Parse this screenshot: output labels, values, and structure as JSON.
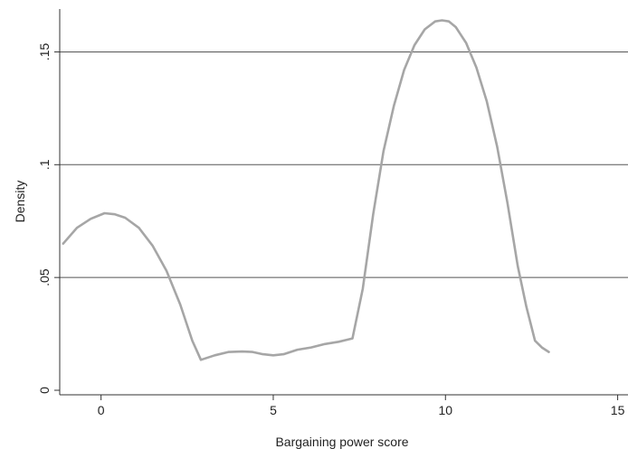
{
  "chart_data": {
    "type": "line",
    "xlabel": "Bargaining power score",
    "ylabel": "Density",
    "xlim": [
      -1.2,
      15.3
    ],
    "ylim": [
      -0.002,
      0.169
    ],
    "xticks": [
      0,
      5,
      10,
      15
    ],
    "xtick_labels": [
      "0",
      "5",
      "10",
      "15"
    ],
    "yticks": [
      0,
      0.05,
      0.1,
      0.15
    ],
    "ytick_labels": [
      "0",
      ".05",
      ".1",
      ".15"
    ],
    "grid": "horizontal",
    "line_color": "#a6a6a6",
    "grid_color": "#555555",
    "series": [
      {
        "x": [
          -1.1,
          -0.7,
          -0.3,
          0.1,
          0.4,
          0.7,
          1.1,
          1.5,
          1.9,
          2.3,
          2.65,
          2.9,
          3.3,
          3.7,
          4.1,
          4.4,
          4.7,
          5.0,
          5.3,
          5.7,
          6.1,
          6.5,
          6.9,
          7.3,
          7.6,
          7.9,
          8.2,
          8.5,
          8.8,
          9.1,
          9.4,
          9.7,
          9.9,
          10.1,
          10.3,
          10.6,
          10.9,
          11.2,
          11.5,
          11.8,
          12.1,
          12.35,
          12.6,
          12.8,
          13.0
        ],
        "y": [
          0.065,
          0.072,
          0.076,
          0.0785,
          0.078,
          0.0765,
          0.072,
          0.064,
          0.053,
          0.038,
          0.022,
          0.0135,
          0.0155,
          0.017,
          0.0172,
          0.017,
          0.016,
          0.0155,
          0.016,
          0.018,
          0.019,
          0.0205,
          0.0215,
          0.023,
          0.045,
          0.078,
          0.106,
          0.126,
          0.142,
          0.153,
          0.16,
          0.1635,
          0.164,
          0.1635,
          0.161,
          0.154,
          0.143,
          0.128,
          0.108,
          0.083,
          0.055,
          0.037,
          0.022,
          0.019,
          0.017
        ]
      }
    ]
  }
}
